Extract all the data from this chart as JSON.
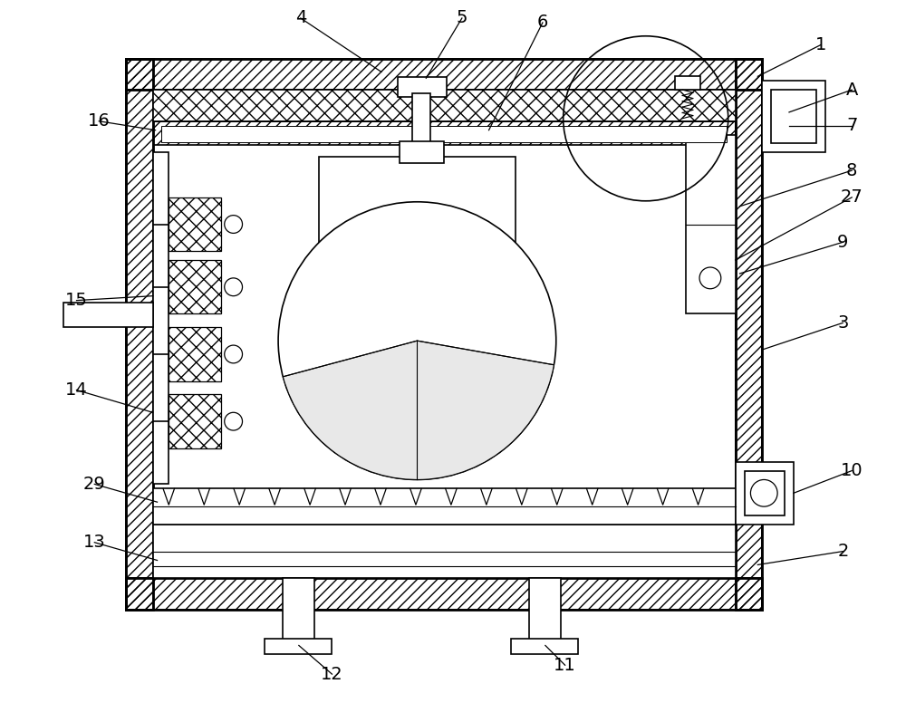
{
  "bg_color": "#ffffff",
  "line_color": "#000000",
  "fig_width": 10.0,
  "fig_height": 7.76,
  "label_fontsize": 14,
  "annotation_lw": 0.9
}
